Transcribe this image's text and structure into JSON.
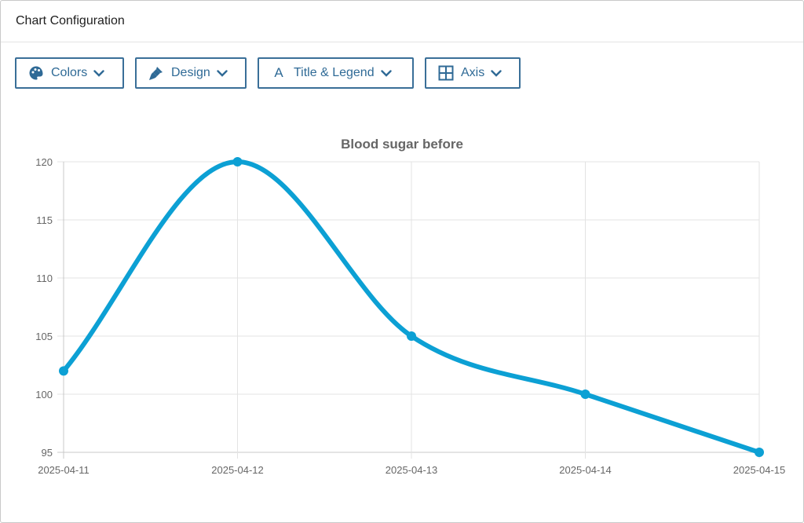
{
  "panel": {
    "title": "Chart Configuration"
  },
  "toolbar": {
    "buttons": [
      {
        "label": "Colors",
        "icon": "palette-icon"
      },
      {
        "label": "Design",
        "icon": "brush-icon"
      },
      {
        "label": "Title & Legend",
        "icon": "text-letter-icon",
        "glyph": "A"
      },
      {
        "label": "Axis",
        "icon": "grid-icon"
      }
    ],
    "accent_color": "#2f6a96"
  },
  "chart_data": {
    "type": "line",
    "title": "Blood sugar before",
    "xlabel": "",
    "ylabel": "",
    "categories": [
      "2025-04-11",
      "2025-04-12",
      "2025-04-13",
      "2025-04-14",
      "2025-04-15"
    ],
    "series": [
      {
        "values": [
          102,
          120,
          105,
          100,
          95
        ],
        "color": "#0ca0d4"
      }
    ],
    "ylim": [
      95,
      120
    ],
    "yticks": [
      95,
      100,
      105,
      110,
      115,
      120
    ],
    "grid": true,
    "smooth": true,
    "legend": "none"
  }
}
